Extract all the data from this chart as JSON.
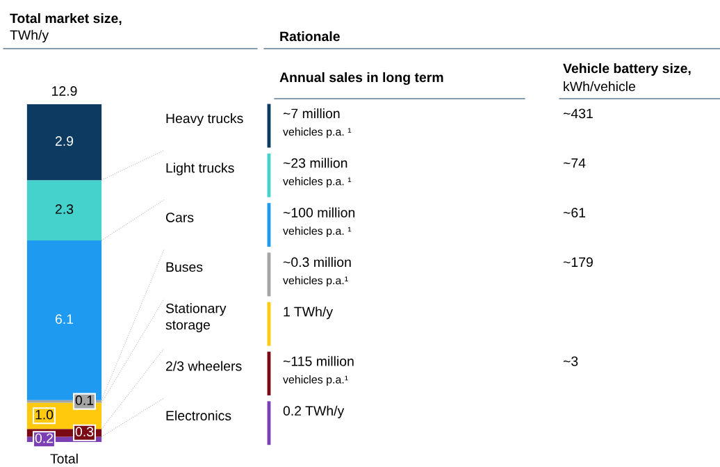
{
  "chart_data": {
    "type": "bar",
    "stacked": true,
    "title": "Total market size,",
    "subtitle": "TWh/y",
    "categories": [
      "Total"
    ],
    "totals": [
      "12.9"
    ],
    "legend": false,
    "series": [
      {
        "name": "Electronics",
        "color": "#7b3fb3",
        "values": [
          0.2
        ],
        "value_labels": [
          "0.2"
        ]
      },
      {
        "name": "2/3 wheelers",
        "color": "#7a0b16",
        "values": [
          0.3
        ],
        "value_labels": [
          "0.3"
        ]
      },
      {
        "name": "Stationary storage",
        "color": "#ffc90e",
        "values": [
          1.0
        ],
        "value_labels": [
          "1.0"
        ]
      },
      {
        "name": "Buses",
        "color": "#a5a5a5",
        "values": [
          0.1
        ],
        "value_labels": [
          "0.1"
        ]
      },
      {
        "name": "Cars",
        "color": "#1e9bf0",
        "values": [
          6.1
        ],
        "value_labels": [
          "6.1"
        ]
      },
      {
        "name": "Light trucks",
        "color": "#45d2cd",
        "values": [
          2.3
        ],
        "value_labels": [
          "2.3"
        ]
      },
      {
        "name": "Heavy trucks",
        "color": "#0c3a60",
        "values": [
          2.9
        ],
        "value_labels": [
          "2.9"
        ]
      }
    ],
    "annotations": [
      "Rationale",
      "Annual sales in long term",
      "Vehicle battery size,",
      "kWh/vehicle",
      "~7 million",
      "vehicles p.a. ¹",
      "~431",
      "~23 million",
      "vehicles p.a. ¹",
      "~74",
      "~100 million",
      "vehicles p.a. ¹",
      "~61",
      "~0.3 million",
      "vehicles p.a.¹",
      "~179",
      "1 TWh/y",
      null,
      null,
      "~115 million",
      "vehicles p.a.¹",
      "~3",
      "0.2 TWh/y",
      null,
      null
    ]
  }
}
